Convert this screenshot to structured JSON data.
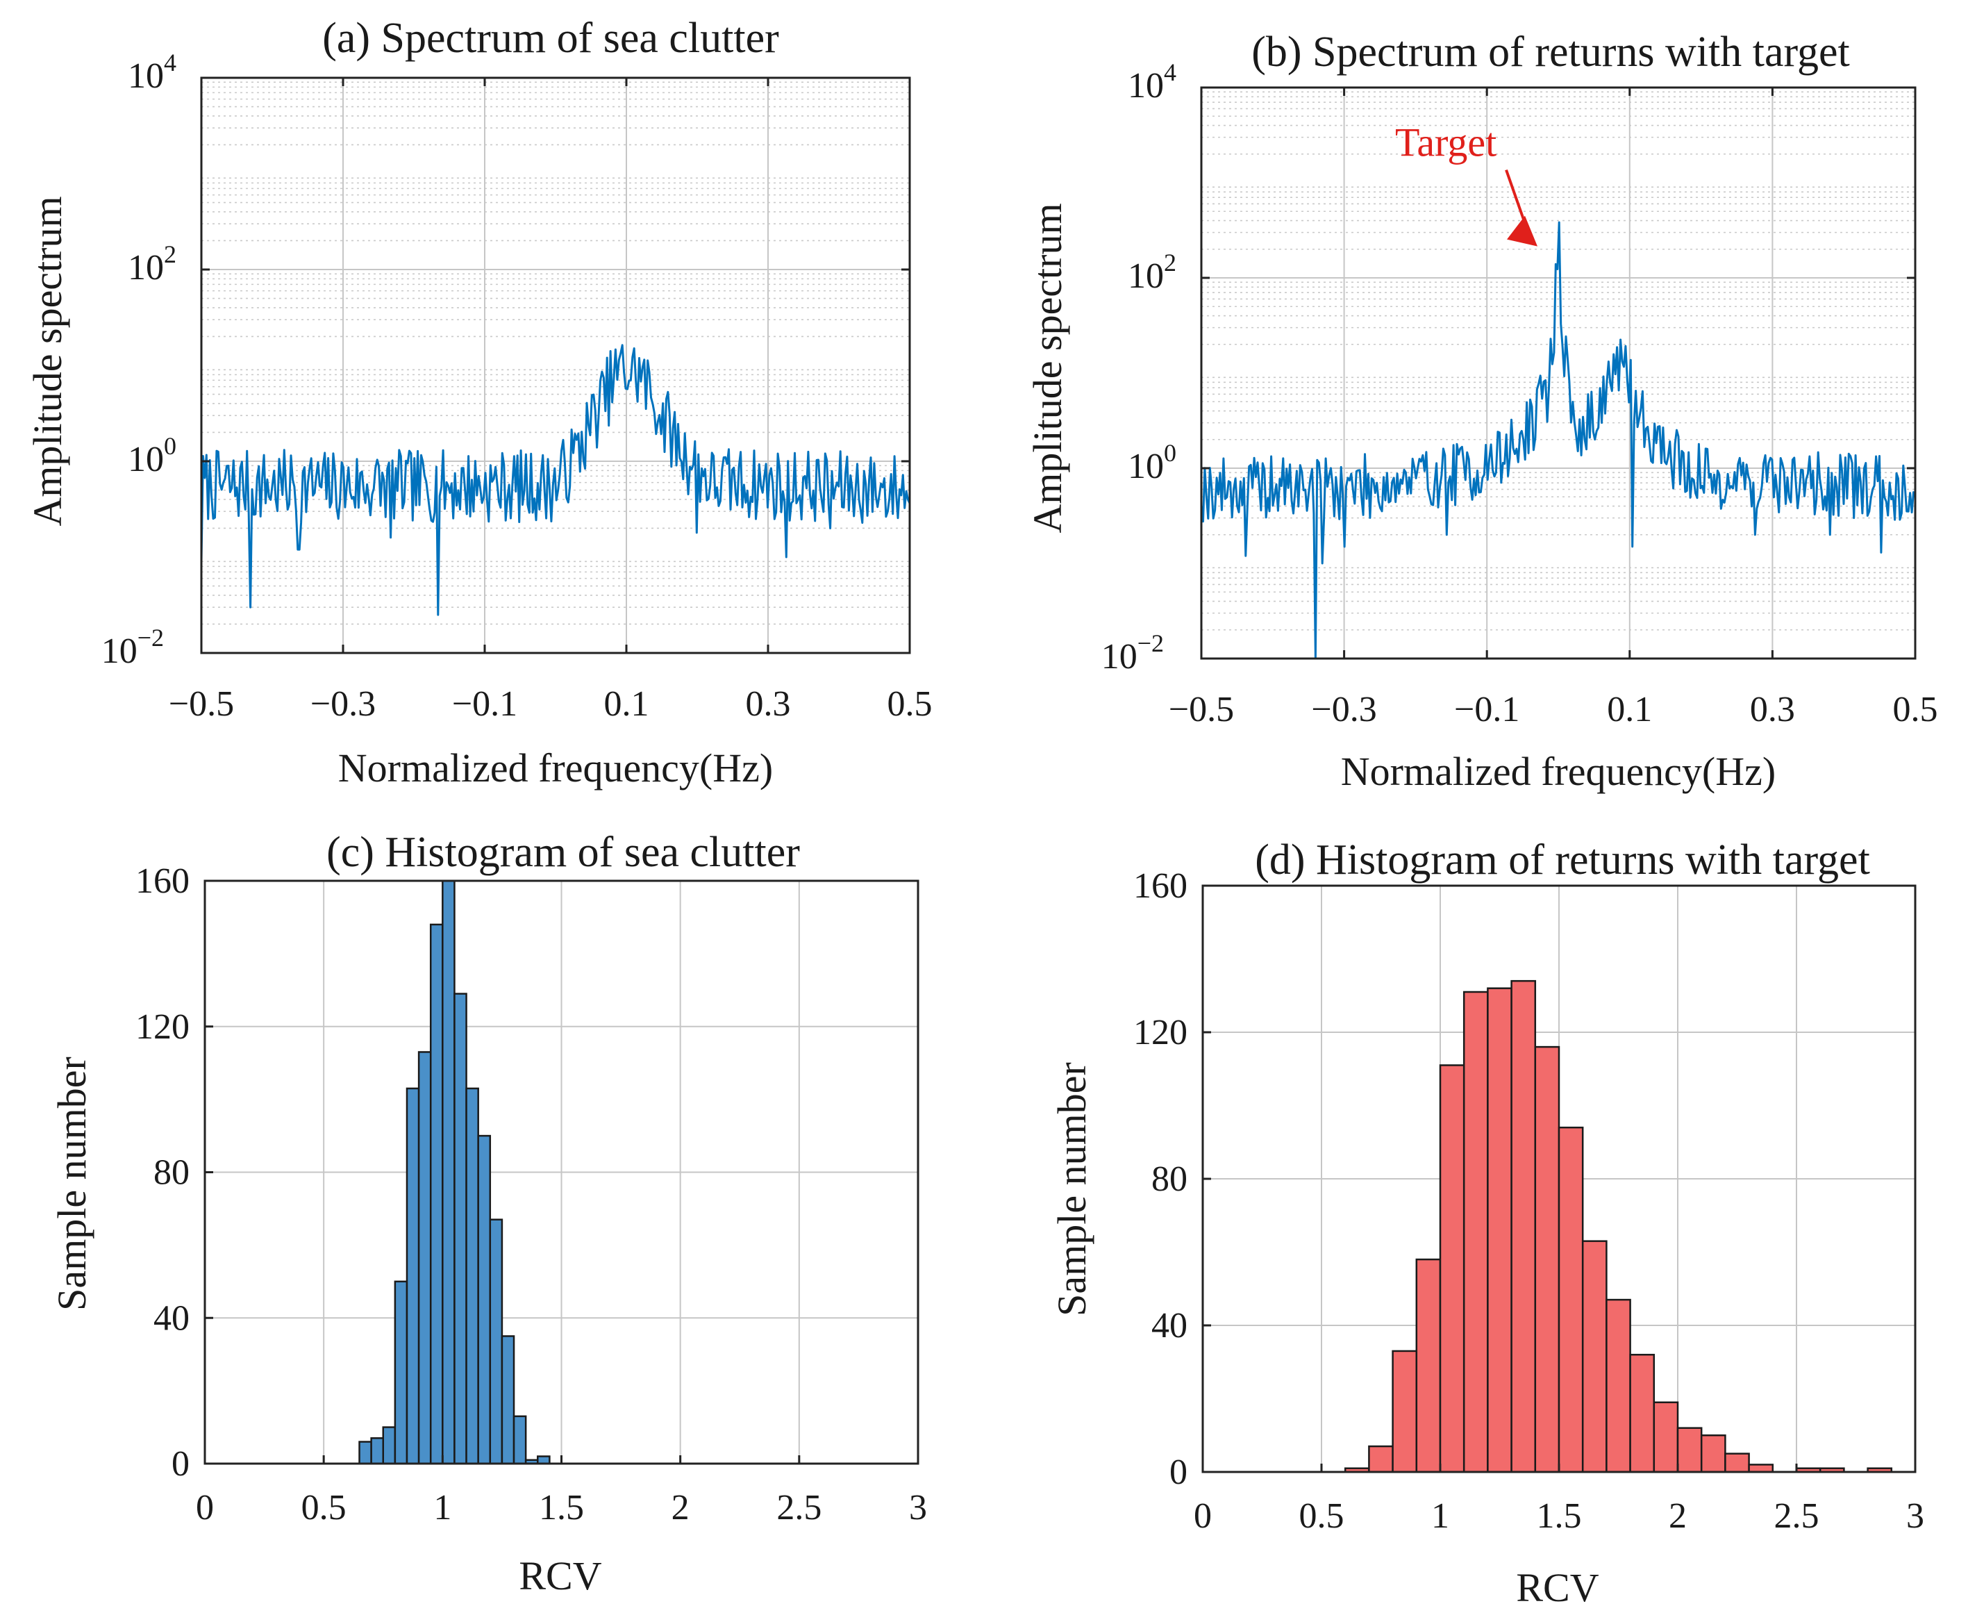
{
  "chart_data": [
    {
      "type": "line",
      "panel": "a",
      "title": "(a) Spectrum of sea clutter",
      "xlabel": "Normalized frequency(Hz)",
      "ylabel": "Amplitude spectrum",
      "xlim": [
        -0.5,
        0.5
      ],
      "xticks": [
        -0.5,
        -0.3,
        -0.1,
        0.1,
        0.3,
        0.5
      ],
      "xtick_labels": [
        "−0.5",
        "−0.3",
        "−0.1",
        "0.1",
        "0.3",
        "0.5"
      ],
      "yscale": "log",
      "ylim": [
        0.01,
        10000
      ],
      "yticks": [
        0.01,
        1,
        100,
        10000
      ],
      "ytick_labels": [
        {
          "base": "10",
          "exp": "−2"
        },
        {
          "base": "10",
          "exp": "0"
        },
        {
          "base": "10",
          "exp": "2"
        },
        {
          "base": "10",
          "exp": "4"
        }
      ],
      "grid": true,
      "color": "#0072BD",
      "series": [
        {
          "name": "sea clutter spectrum",
          "profile": [
            [
              -0.5,
              0.55
            ],
            [
              0.0,
              0.55
            ],
            [
              0.03,
              1.2
            ],
            [
              0.06,
              3.5
            ],
            [
              0.09,
              9.0
            ],
            [
              0.12,
              8.0
            ],
            [
              0.15,
              3.0
            ],
            [
              0.18,
              1.2
            ],
            [
              0.22,
              0.6
            ],
            [
              0.5,
              0.5
            ]
          ],
          "dips": [
            [
              -0.5,
              0.09
            ],
            [
              -0.43,
              0.03
            ],
            [
              -0.363,
              0.12
            ],
            [
              -0.232,
              0.16
            ],
            [
              -0.165,
              0.025
            ],
            [
              0.2,
              0.18
            ],
            [
              0.325,
              0.1
            ],
            [
              0.388,
              0.2
            ]
          ],
          "seed": 7,
          "points": 420,
          "noise": 0.38
        }
      ]
    },
    {
      "type": "line",
      "panel": "b",
      "title": "(b) Spectrum of returns with target",
      "xlabel": "Normalized frequency(Hz)",
      "ylabel": "Amplitude spectrum",
      "xlim": [
        -0.5,
        0.5
      ],
      "xticks": [
        -0.5,
        -0.3,
        -0.1,
        0.1,
        0.3,
        0.5
      ],
      "xtick_labels": [
        "−0.5",
        "−0.3",
        "−0.1",
        "0.1",
        "0.3",
        "0.5"
      ],
      "yscale": "log",
      "ylim": [
        0.01,
        10000
      ],
      "yticks": [
        0.01,
        1,
        100,
        10000
      ],
      "ytick_labels": [
        {
          "base": "10",
          "exp": "−2"
        },
        {
          "base": "10",
          "exp": "0"
        },
        {
          "base": "10",
          "exp": "2"
        },
        {
          "base": "10",
          "exp": "4"
        }
      ],
      "grid": true,
      "color": "#0072BD",
      "annotation": {
        "text": "Target",
        "color": "#E0201B",
        "x": 0.0,
        "y": 300
      },
      "series": [
        {
          "name": "returns with target spectrum",
          "profile": [
            [
              -0.5,
              0.6
            ],
            [
              -0.25,
              0.65
            ],
            [
              -0.1,
              1.0
            ],
            [
              -0.05,
              2.0
            ],
            [
              -0.015,
              6.0
            ],
            [
              -0.005,
              40
            ],
            [
              0.0,
              300
            ],
            [
              0.005,
              40
            ],
            [
              0.015,
              5.0
            ],
            [
              0.03,
              2.0
            ],
            [
              0.06,
              5.0
            ],
            [
              0.08,
              12.0
            ],
            [
              0.1,
              8.0
            ],
            [
              0.12,
              3.0
            ],
            [
              0.15,
              1.5
            ],
            [
              0.2,
              0.8
            ],
            [
              0.5,
              0.6
            ]
          ],
          "dips": [
            [
              -0.33,
              0.1
            ],
            [
              -0.34,
              0.01
            ],
            [
              -0.3,
              0.15
            ],
            [
              -0.437,
              0.12
            ],
            [
              -0.157,
              0.2
            ],
            [
              0.103,
              0.15
            ],
            [
              0.276,
              0.2
            ],
            [
              0.38,
              0.2
            ],
            [
              0.452,
              0.13
            ]
          ],
          "seed": 19,
          "points": 420,
          "noise": 0.34
        }
      ]
    },
    {
      "type": "bar",
      "panel": "c",
      "title": "(c) Histogram of sea clutter",
      "xlabel": "RCV",
      "ylabel": "Sample number",
      "xlim": [
        0,
        3
      ],
      "ylim": [
        0,
        160
      ],
      "xticks": [
        0,
        0.5,
        1,
        1.5,
        2,
        2.5,
        3
      ],
      "xtick_labels": [
        "0",
        "0.5",
        "1",
        "1.5",
        "2",
        "2.5",
        "3"
      ],
      "yticks": [
        0,
        40,
        80,
        120,
        160
      ],
      "ytick_labels": [
        "0",
        "40",
        "80",
        "120",
        "160"
      ],
      "grid": true,
      "bar_color": "#4A90C9",
      "bin_edges": [
        0.65,
        0.7,
        0.75,
        0.8,
        0.85,
        0.9,
        0.95,
        1.0,
        1.05,
        1.1,
        1.15,
        1.2,
        1.25,
        1.3,
        1.35,
        1.4,
        1.45
      ],
      "values": [
        6,
        7,
        10,
        50,
        103,
        113,
        148,
        160,
        129,
        103,
        90,
        67,
        35,
        13,
        1,
        2
      ]
    },
    {
      "type": "bar",
      "panel": "d",
      "title": "(d) Histogram of returns with target",
      "xlabel": "RCV",
      "ylabel": "Sample number",
      "xlim": [
        0,
        3
      ],
      "ylim": [
        0,
        160
      ],
      "xticks": [
        0,
        0.5,
        1,
        1.5,
        2,
        2.5,
        3
      ],
      "xtick_labels": [
        "0",
        "0.5",
        "1",
        "1.5",
        "2",
        "2.5",
        "3"
      ],
      "yticks": [
        0,
        40,
        80,
        120,
        160
      ],
      "ytick_labels": [
        "0",
        "40",
        "80",
        "120",
        "160"
      ],
      "grid": true,
      "bar_color": "#F26B6B",
      "bin_edges": [
        0.6,
        0.7,
        0.8,
        0.9,
        1.0,
        1.1,
        1.2,
        1.3,
        1.4,
        1.5,
        1.6,
        1.7,
        1.8,
        1.9,
        2.0,
        2.1,
        2.2,
        2.3,
        2.4,
        2.5,
        2.6,
        2.7,
        2.8,
        2.9
      ],
      "values": [
        1,
        7,
        33,
        58,
        111,
        131,
        132,
        134,
        116,
        94,
        63,
        47,
        32,
        19,
        12,
        10,
        5,
        2,
        0,
        1,
        1,
        0,
        1
      ]
    }
  ]
}
